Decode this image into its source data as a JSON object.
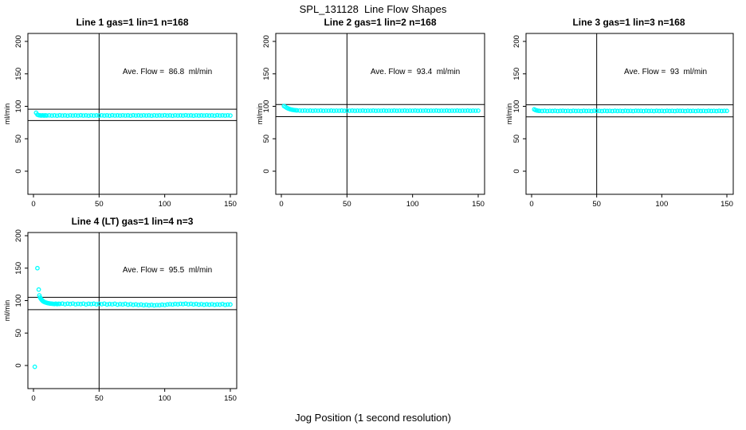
{
  "page": {
    "main_title": "SPL_131128  Line Flow Shapes",
    "x_axis_label": "Jog Position (1 second resolution)",
    "y_axis_label": "ml/min",
    "point_color": "#00ffff",
    "axis_color": "#000000",
    "background_color": "#ffffff"
  },
  "chart_data": [
    {
      "type": "scatter",
      "title": "Line 1 gas=1 lin=1 n=168",
      "annotation": "Ave. Flow =  86.8  ml/min",
      "ave_flow": 86.8,
      "n": 168,
      "ylabel": "ml/min",
      "xticks": [
        0,
        50,
        100,
        150
      ],
      "yticks": [
        0,
        50,
        100,
        150,
        200
      ],
      "xlim": [
        0,
        150
      ],
      "ylim": [
        -35,
        212
      ],
      "vline_x": 50,
      "hlines": [
        95.5,
        78.1
      ],
      "points": [
        [
          2,
          90
        ],
        [
          3,
          87.2
        ],
        [
          4,
          86.3
        ],
        [
          5,
          86.0
        ],
        [
          6,
          85.8
        ],
        [
          7,
          86.1
        ],
        [
          8,
          85.7
        ],
        [
          9,
          86.0
        ],
        [
          10,
          85.8
        ],
        [
          12,
          86.1
        ],
        [
          14,
          85.7
        ],
        [
          16,
          86.0
        ],
        [
          18,
          85.6
        ],
        [
          20,
          86.2
        ],
        [
          22,
          85.8
        ],
        [
          24,
          86.0
        ],
        [
          26,
          85.6
        ],
        [
          28,
          86.1
        ],
        [
          30,
          85.8
        ],
        [
          32,
          86.0
        ],
        [
          34,
          85.7
        ],
        [
          36,
          86.2
        ],
        [
          38,
          85.8
        ],
        [
          40,
          86.0
        ],
        [
          42,
          85.6
        ],
        [
          44,
          86.1
        ],
        [
          46,
          85.7
        ],
        [
          48,
          86.0
        ],
        [
          50,
          85.8
        ],
        [
          52,
          86.1
        ],
        [
          54,
          85.7
        ],
        [
          56,
          86.0
        ],
        [
          58,
          85.6
        ],
        [
          60,
          86.2
        ],
        [
          62,
          85.8
        ],
        [
          64,
          86.0
        ],
        [
          66,
          85.7
        ],
        [
          68,
          86.1
        ],
        [
          70,
          85.8
        ],
        [
          72,
          86.0
        ],
        [
          74,
          85.6
        ],
        [
          76,
          86.2
        ],
        [
          78,
          85.8
        ],
        [
          80,
          86.0
        ],
        [
          82,
          85.7
        ],
        [
          84,
          86.1
        ],
        [
          86,
          85.8
        ],
        [
          88,
          86.0
        ],
        [
          90,
          85.6
        ],
        [
          92,
          86.1
        ],
        [
          94,
          85.7
        ],
        [
          96,
          86.0
        ],
        [
          98,
          85.8
        ],
        [
          100,
          86.2
        ],
        [
          102,
          85.7
        ],
        [
          104,
          86.0
        ],
        [
          106,
          85.6
        ],
        [
          108,
          86.1
        ],
        [
          110,
          85.8
        ],
        [
          112,
          86.0
        ],
        [
          114,
          85.7
        ],
        [
          116,
          86.2
        ],
        [
          118,
          85.8
        ],
        [
          120,
          86.0
        ],
        [
          122,
          85.6
        ],
        [
          124,
          86.1
        ],
        [
          126,
          85.7
        ],
        [
          128,
          86.0
        ],
        [
          130,
          85.8
        ],
        [
          132,
          86.1
        ],
        [
          134,
          85.7
        ],
        [
          136,
          86.0
        ],
        [
          138,
          85.6
        ],
        [
          140,
          86.2
        ],
        [
          142,
          85.8
        ],
        [
          144,
          86.0
        ],
        [
          146,
          85.7
        ],
        [
          148,
          86.1
        ],
        [
          150,
          85.8
        ]
      ]
    },
    {
      "type": "scatter",
      "title": "Line 2 gas=1 lin=2 n=168",
      "annotation": "Ave. Flow =  93.4  ml/min",
      "ave_flow": 93.4,
      "n": 168,
      "ylabel": "ml/min",
      "xticks": [
        0,
        50,
        100,
        150
      ],
      "yticks": [
        0,
        50,
        100,
        150,
        200
      ],
      "xlim": [
        0,
        150
      ],
      "ylim": [
        -35,
        212
      ],
      "vline_x": 50,
      "hlines": [
        102.7,
        84.1
      ],
      "points": [
        [
          2,
          100.5
        ],
        [
          3,
          99.2
        ],
        [
          4,
          97.8
        ],
        [
          5,
          96.8
        ],
        [
          6,
          96.0
        ],
        [
          7,
          95.3
        ],
        [
          8,
          94.8
        ],
        [
          9,
          94.4
        ],
        [
          10,
          94.1
        ],
        [
          11,
          93.9
        ],
        [
          12,
          93.7
        ],
        [
          14,
          93.5
        ],
        [
          16,
          93.3
        ],
        [
          18,
          93.5
        ],
        [
          20,
          93.2
        ],
        [
          22,
          93.4
        ],
        [
          24,
          93.1
        ],
        [
          26,
          93.4
        ],
        [
          28,
          93.2
        ],
        [
          30,
          93.5
        ],
        [
          32,
          93.1
        ],
        [
          34,
          93.3
        ],
        [
          36,
          93.2
        ],
        [
          38,
          93.4
        ],
        [
          40,
          93.1
        ],
        [
          42,
          93.3
        ],
        [
          44,
          93.2
        ],
        [
          46,
          93.4
        ],
        [
          48,
          93.1
        ],
        [
          50,
          93.3
        ],
        [
          52,
          93.2
        ],
        [
          54,
          93.4
        ],
        [
          56,
          93.1
        ],
        [
          58,
          93.3
        ],
        [
          60,
          93.2
        ],
        [
          62,
          93.4
        ],
        [
          64,
          93.1
        ],
        [
          66,
          93.3
        ],
        [
          68,
          93.2
        ],
        [
          70,
          93.4
        ],
        [
          72,
          93.1
        ],
        [
          74,
          93.3
        ],
        [
          76,
          93.2
        ],
        [
          78,
          93.4
        ],
        [
          80,
          93.1
        ],
        [
          82,
          93.3
        ],
        [
          84,
          93.2
        ],
        [
          86,
          93.4
        ],
        [
          88,
          93.1
        ],
        [
          90,
          93.3
        ],
        [
          92,
          93.2
        ],
        [
          94,
          93.4
        ],
        [
          96,
          93.1
        ],
        [
          98,
          93.3
        ],
        [
          100,
          93.2
        ],
        [
          102,
          93.4
        ],
        [
          104,
          93.1
        ],
        [
          106,
          93.3
        ],
        [
          108,
          93.2
        ],
        [
          110,
          93.4
        ],
        [
          112,
          93.1
        ],
        [
          114,
          93.3
        ],
        [
          116,
          93.2
        ],
        [
          118,
          93.4
        ],
        [
          120,
          93.1
        ],
        [
          122,
          93.3
        ],
        [
          124,
          93.2
        ],
        [
          126,
          93.4
        ],
        [
          128,
          93.1
        ],
        [
          130,
          93.3
        ],
        [
          132,
          93.2
        ],
        [
          134,
          93.4
        ],
        [
          136,
          93.1
        ],
        [
          138,
          93.3
        ],
        [
          140,
          93.2
        ],
        [
          142,
          93.4
        ],
        [
          144,
          93.1
        ],
        [
          146,
          93.3
        ],
        [
          148,
          93.2
        ],
        [
          150,
          93.3
        ]
      ]
    },
    {
      "type": "scatter",
      "title": "Line 3 gas=1 lin=3 n=168",
      "annotation": "Ave. Flow =  93  ml/min",
      "ave_flow": 93,
      "n": 168,
      "ylabel": "ml/min",
      "xticks": [
        0,
        50,
        100,
        150
      ],
      "yticks": [
        0,
        50,
        100,
        150,
        200
      ],
      "xlim": [
        0,
        150
      ],
      "ylim": [
        -35,
        212
      ],
      "vline_x": 50,
      "hlines": [
        102.3,
        83.7
      ],
      "points": [
        [
          2,
          95.2
        ],
        [
          3,
          94.2
        ],
        [
          4,
          93.6
        ],
        [
          5,
          93.2
        ],
        [
          6,
          93.0
        ],
        [
          8,
          92.8
        ],
        [
          10,
          93.1
        ],
        [
          12,
          92.7
        ],
        [
          14,
          93.0
        ],
        [
          16,
          92.8
        ],
        [
          18,
          93.1
        ],
        [
          20,
          92.7
        ],
        [
          22,
          92.9
        ],
        [
          24,
          93.1
        ],
        [
          26,
          92.8
        ],
        [
          28,
          93.0
        ],
        [
          30,
          92.7
        ],
        [
          32,
          93.1
        ],
        [
          34,
          92.8
        ],
        [
          36,
          93.0
        ],
        [
          38,
          92.7
        ],
        [
          40,
          93.1
        ],
        [
          42,
          92.8
        ],
        [
          44,
          93.0
        ],
        [
          46,
          92.7
        ],
        [
          48,
          93.1
        ],
        [
          50,
          92.9
        ],
        [
          52,
          93.0
        ],
        [
          54,
          92.7
        ],
        [
          56,
          93.1
        ],
        [
          58,
          92.8
        ],
        [
          60,
          93.0
        ],
        [
          62,
          92.7
        ],
        [
          64,
          93.1
        ],
        [
          66,
          92.8
        ],
        [
          68,
          93.0
        ],
        [
          70,
          92.7
        ],
        [
          72,
          93.1
        ],
        [
          74,
          92.8
        ],
        [
          76,
          93.0
        ],
        [
          78,
          92.7
        ],
        [
          80,
          93.1
        ],
        [
          82,
          92.9
        ],
        [
          84,
          93.0
        ],
        [
          86,
          92.7
        ],
        [
          88,
          93.1
        ],
        [
          90,
          92.8
        ],
        [
          92,
          93.0
        ],
        [
          94,
          92.7
        ],
        [
          96,
          93.1
        ],
        [
          98,
          92.8
        ],
        [
          100,
          93.0
        ],
        [
          102,
          92.7
        ],
        [
          104,
          93.1
        ],
        [
          106,
          92.8
        ],
        [
          108,
          93.0
        ],
        [
          110,
          92.7
        ],
        [
          112,
          93.1
        ],
        [
          114,
          92.9
        ],
        [
          116,
          93.0
        ],
        [
          118,
          92.7
        ],
        [
          120,
          93.1
        ],
        [
          122,
          92.8
        ],
        [
          124,
          93.0
        ],
        [
          126,
          92.7
        ],
        [
          128,
          93.1
        ],
        [
          130,
          92.8
        ],
        [
          132,
          93.0
        ],
        [
          134,
          92.7
        ],
        [
          136,
          93.1
        ],
        [
          138,
          92.8
        ],
        [
          140,
          93.0
        ],
        [
          142,
          92.7
        ],
        [
          144,
          93.1
        ],
        [
          146,
          92.8
        ],
        [
          148,
          93.0
        ],
        [
          150,
          92.9
        ]
      ]
    },
    {
      "type": "scatter",
      "title": "Line 4 (LT) gas=1 lin=4 n=3",
      "annotation": "Ave. Flow =  95.5  ml/min",
      "ave_flow": 95.5,
      "n": 3,
      "ylabel": "ml/min",
      "xticks": [
        0,
        50,
        100,
        150
      ],
      "yticks": [
        0,
        50,
        100,
        150,
        200
      ],
      "xlim": [
        0,
        150
      ],
      "ylim": [
        -35,
        205
      ],
      "vline_x": 50,
      "hlines": [
        105.1,
        86.0
      ],
      "points": [
        [
          1,
          -2
        ],
        [
          3,
          150
        ],
        [
          4,
          117
        ],
        [
          4.5,
          108
        ],
        [
          5,
          105
        ],
        [
          5.5,
          103.2
        ],
        [
          6,
          101.8
        ],
        [
          6.5,
          100.6
        ],
        [
          7,
          99.6
        ],
        [
          7.5,
          98.8
        ],
        [
          8,
          98.2
        ],
        [
          9,
          97.3
        ],
        [
          10,
          96.6
        ],
        [
          11,
          96.1
        ],
        [
          12,
          95.7
        ],
        [
          13,
          95.4
        ],
        [
          14,
          95.2
        ],
        [
          15,
          95.0
        ],
        [
          16,
          94.8
        ],
        [
          17,
          95.3
        ],
        [
          18,
          94.6
        ],
        [
          19,
          95.1
        ],
        [
          20,
          94.9
        ],
        [
          22,
          95.4
        ],
        [
          24,
          94.5
        ],
        [
          26,
          95.2
        ],
        [
          28,
          94.8
        ],
        [
          30,
          95.5
        ],
        [
          32,
          94.4
        ],
        [
          34,
          95.0
        ],
        [
          36,
          94.6
        ],
        [
          38,
          95.3
        ],
        [
          40,
          94.2
        ],
        [
          42,
          95.1
        ],
        [
          44,
          94.7
        ],
        [
          46,
          95.2
        ],
        [
          48,
          94.3
        ],
        [
          50,
          95.0
        ],
        [
          52,
          94.5
        ],
        [
          54,
          95.3
        ],
        [
          56,
          94.1
        ],
        [
          58,
          94.8
        ],
        [
          60,
          94.4
        ],
        [
          62,
          95.1
        ],
        [
          64,
          93.9
        ],
        [
          66,
          94.6
        ],
        [
          68,
          94.2
        ],
        [
          70,
          94.9
        ],
        [
          72,
          93.8
        ],
        [
          74,
          94.5
        ],
        [
          76,
          93.6
        ],
        [
          78,
          94.2
        ],
        [
          80,
          93.3
        ],
        [
          82,
          93.9
        ],
        [
          84,
          93.0
        ],
        [
          86,
          93.6
        ],
        [
          88,
          92.8
        ],
        [
          90,
          93.4
        ],
        [
          92,
          92.7
        ],
        [
          94,
          93.2
        ],
        [
          96,
          93.0
        ],
        [
          98,
          93.7
        ],
        [
          100,
          93.2
        ],
        [
          102,
          94.0
        ],
        [
          104,
          94.5
        ],
        [
          106,
          94.1
        ],
        [
          108,
          94.8
        ],
        [
          110,
          94.3
        ],
        [
          112,
          95.0
        ],
        [
          114,
          94.6
        ],
        [
          116,
          95.2
        ],
        [
          118,
          94.4
        ],
        [
          120,
          95.0
        ],
        [
          122,
          94.2
        ],
        [
          124,
          94.8
        ],
        [
          126,
          93.9
        ],
        [
          128,
          94.5
        ],
        [
          130,
          93.7
        ],
        [
          132,
          94.3
        ],
        [
          134,
          93.8
        ],
        [
          136,
          94.4
        ],
        [
          138,
          93.6
        ],
        [
          140,
          94.2
        ],
        [
          142,
          93.9
        ],
        [
          144,
          94.6
        ],
        [
          146,
          93.5
        ],
        [
          148,
          94.1
        ],
        [
          150,
          94.0
        ]
      ]
    }
  ]
}
